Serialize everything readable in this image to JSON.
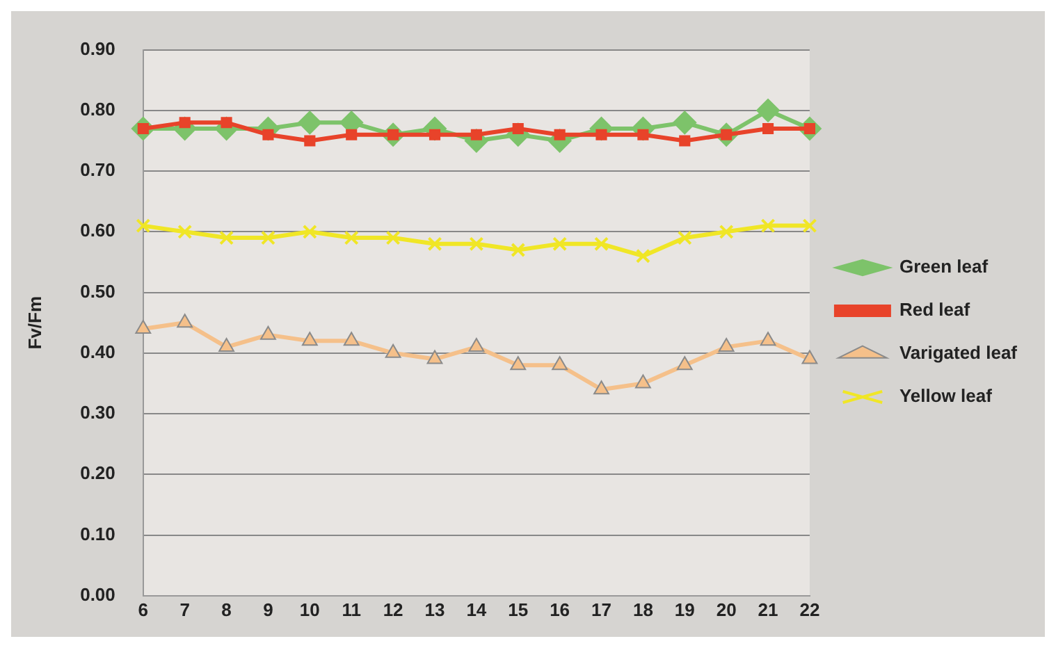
{
  "chart_data": {
    "type": "line",
    "ylabel": "Fv/Fm",
    "categories": [
      "6",
      "7",
      "8",
      "9",
      "10",
      "11",
      "12",
      "13",
      "14",
      "15",
      "16",
      "17",
      "18",
      "19",
      "20",
      "21",
      "22"
    ],
    "series": [
      {
        "name": "Green leaf",
        "color": "#7dc36a",
        "marker": "diamond",
        "values": [
          0.77,
          0.77,
          0.77,
          0.77,
          0.78,
          0.78,
          0.76,
          0.77,
          0.75,
          0.76,
          0.75,
          0.77,
          0.77,
          0.78,
          0.76,
          0.8,
          0.77
        ]
      },
      {
        "name": "Red leaf",
        "color": "#e8432a",
        "marker": "square",
        "values": [
          0.77,
          0.78,
          0.78,
          0.76,
          0.75,
          0.76,
          0.76,
          0.76,
          0.76,
          0.77,
          0.76,
          0.76,
          0.76,
          0.75,
          0.76,
          0.77,
          0.77
        ]
      },
      {
        "name": "Varigated leaf",
        "color": "#f5c08a",
        "marker": "triangle",
        "values": [
          0.44,
          0.45,
          0.41,
          0.43,
          0.42,
          0.42,
          0.4,
          0.39,
          0.41,
          0.38,
          0.38,
          0.34,
          0.35,
          0.38,
          0.41,
          0.42,
          0.39
        ]
      },
      {
        "name": "Yellow leaf",
        "color": "#f0e626",
        "marker": "cross",
        "values": [
          0.61,
          0.6,
          0.59,
          0.59,
          0.6,
          0.59,
          0.59,
          0.58,
          0.58,
          0.57,
          0.58,
          0.58,
          0.56,
          0.59,
          0.6,
          0.61,
          0.61
        ]
      }
    ],
    "ylim": [
      0,
      0.9
    ],
    "yticks": [
      {
        "value": 0,
        "label": "0.00"
      },
      {
        "value": 0.1,
        "label": "0.10"
      },
      {
        "value": 0.2,
        "label": "0.20"
      },
      {
        "value": 0.3,
        "label": "0.30"
      },
      {
        "value": 0.4,
        "label": "0.40"
      },
      {
        "value": 0.5,
        "label": "0.50"
      },
      {
        "value": 0.6,
        "label": "0.60"
      },
      {
        "value": 0.7,
        "label": "0.70"
      },
      {
        "value": 0.8,
        "label": "0.80"
      },
      {
        "value": 0.9,
        "label": "0.90"
      }
    ],
    "grid": "y",
    "legend": "right",
    "line_style": "solid"
  }
}
